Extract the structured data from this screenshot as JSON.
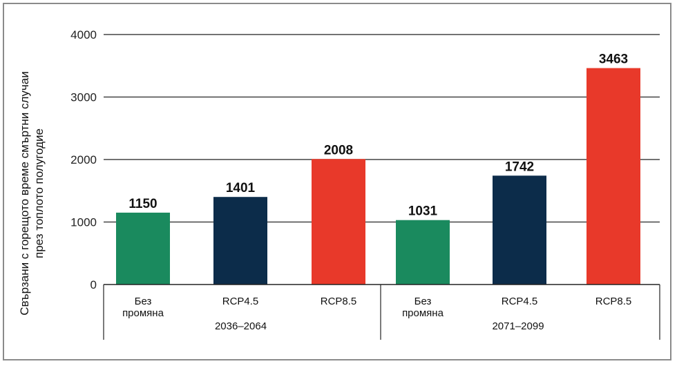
{
  "chart_data": {
    "type": "bar",
    "ylabel_line1": "Свързани с горещото време смъртни случаи",
    "ylabel_line2": "през топлото полугодие",
    "ylim": [
      0,
      4000
    ],
    "yticks": [
      "0",
      "1000",
      "2000",
      "3000",
      "4000"
    ],
    "ytick_values": [
      0,
      1000,
      2000,
      3000,
      4000
    ],
    "grid": true,
    "groups": [
      {
        "label": "2036–2064",
        "bars": [
          {
            "category": [
              "Без",
              "промяна"
            ],
            "value": 1150,
            "label": "1150",
            "color": "#1a8a5e"
          },
          {
            "category": [
              "RCP4.5"
            ],
            "value": 1401,
            "label": "1401",
            "color": "#0c2c4a"
          },
          {
            "category": [
              "RCP8.5"
            ],
            "value": 2008,
            "label": "2008",
            "color": "#e8392a"
          }
        ]
      },
      {
        "label": "2071–2099",
        "bars": [
          {
            "category": [
              "Без",
              "промяна"
            ],
            "value": 1031,
            "label": "1031",
            "color": "#1a8a5e"
          },
          {
            "category": [
              "RCP4.5"
            ],
            "value": 1742,
            "label": "1742",
            "color": "#0c2c4a"
          },
          {
            "category": [
              "RCP8.5"
            ],
            "value": 3463,
            "label": "3463",
            "color": "#e8392a"
          }
        ]
      }
    ]
  }
}
